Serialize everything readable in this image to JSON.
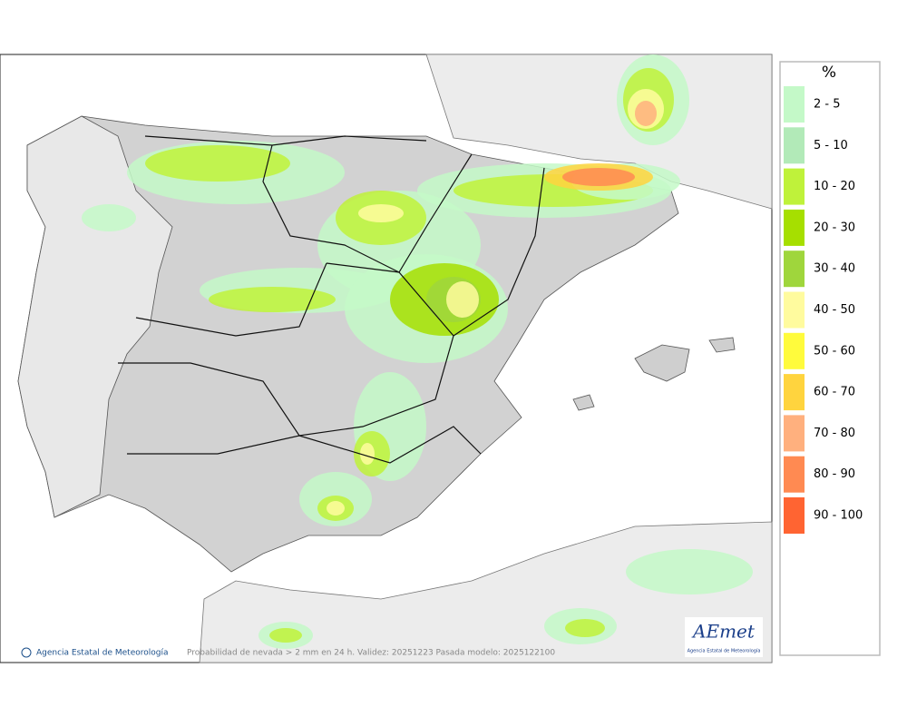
{
  "legend": {
    "title": "%",
    "items": [
      {
        "label": "2 - 5",
        "color": "#c4f9c8"
      },
      {
        "label": "5 - 10",
        "color": "#b2eab8"
      },
      {
        "label": "10 - 20",
        "color": "#bff23a"
      },
      {
        "label": "20 - 30",
        "color": "#a6df00"
      },
      {
        "label": "30 - 40",
        "color": "#9fd63c"
      },
      {
        "label": "40 - 50",
        "color": "#fffb9e"
      },
      {
        "label": "50 - 60",
        "color": "#fffb3c"
      },
      {
        "label": "60 - 70",
        "color": "#ffd43e"
      },
      {
        "label": "70 - 80",
        "color": "#ffb07e"
      },
      {
        "label": "80 - 90",
        "color": "#ff8a52"
      },
      {
        "label": "90 - 100",
        "color": "#ff6432"
      }
    ]
  },
  "footer": {
    "credit": "Agencia Estatal de Meteorología",
    "caption": "Probabilidad de nevada > 2 mm en 24 h. Validez: 20251223 Pasada modelo: 2025122100"
  },
  "logo": {
    "name": "AEmet",
    "subtitle": "Agencia Estatal de Meteorología"
  }
}
